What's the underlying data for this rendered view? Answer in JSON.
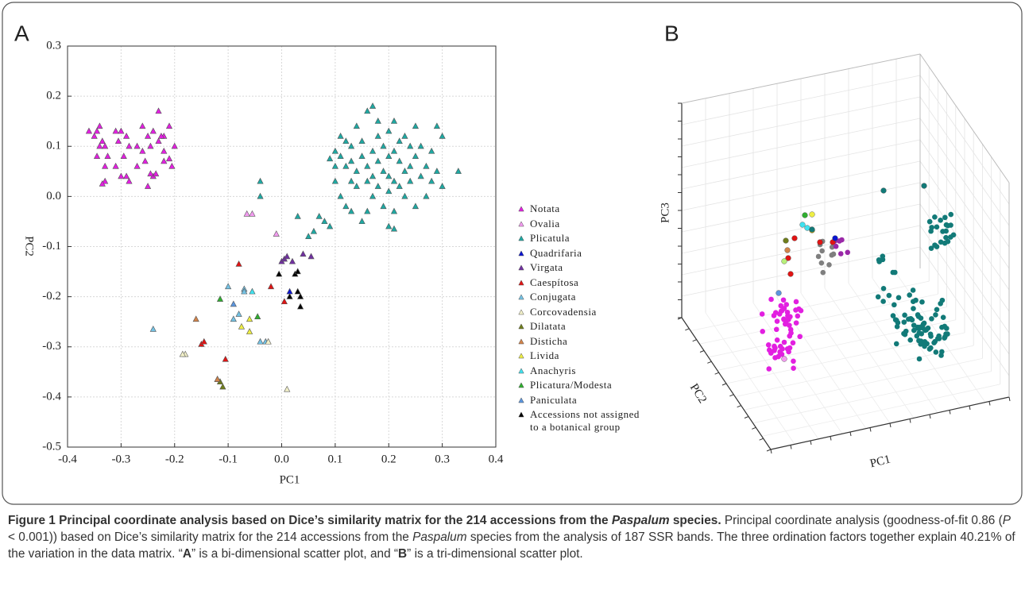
{
  "figure": {
    "panel_a_label": "A",
    "panel_b_label": "B"
  },
  "chart_data": [
    {
      "type": "scatter",
      "xlabel": "PC1",
      "ylabel": "PC2",
      "grid": true,
      "legend": "right",
      "xlim": [
        -0.4,
        0.4
      ],
      "ylim": [
        -0.5,
        0.3
      ],
      "xticks": [
        -0.4,
        -0.3,
        -0.2,
        -0.1,
        {
          "value": 0,
          "label": "0.0"
        },
        0.1,
        0.2,
        0.3,
        0.4
      ],
      "yticks": [
        0.3,
        0.2,
        0.1,
        {
          "value": 0,
          "label": "0.0"
        },
        -0.1,
        -0.2,
        -0.3,
        -0.4,
        -0.5
      ],
      "series": [
        {
          "name": "Notata",
          "color": "#e21fe0",
          "x": [
            -0.36,
            -0.345,
            -0.34,
            -0.35,
            -0.335,
            -0.34,
            -0.33,
            -0.345,
            -0.31,
            -0.325,
            -0.3,
            -0.305,
            -0.29,
            -0.285,
            -0.295,
            -0.31,
            -0.29,
            -0.27,
            -0.26,
            -0.25,
            -0.24,
            -0.245,
            -0.26,
            -0.255,
            -0.23,
            -0.22,
            -0.22,
            -0.21,
            -0.2,
            -0.22,
            -0.21,
            -0.205,
            -0.33,
            -0.33,
            -0.335,
            -0.285,
            -0.25,
            -0.24,
            -0.235,
            -0.23,
            -0.225,
            -0.27,
            -0.3,
            -0.245
          ],
          "values": [
            0.13,
            0.13,
            0.14,
            0.12,
            0.11,
            0.1,
            0.1,
            0.08,
            0.13,
            0.08,
            0.13,
            0.11,
            0.12,
            0.1,
            0.08,
            0.06,
            0.04,
            0.06,
            0.14,
            0.12,
            0.13,
            0.1,
            0.09,
            0.07,
            0.11,
            0.09,
            0.12,
            0.14,
            0.1,
            0.07,
            0.075,
            0.06,
            0.06,
            0.03,
            0.025,
            0.03,
            0.02,
            0.04,
            0.045,
            0.17,
            0.12,
            0.1,
            0.04,
            0.045
          ]
        },
        {
          "name": "Ovalia",
          "color": "#f39af0",
          "x": [
            -0.065,
            -0.055,
            -0.01
          ],
          "values": [
            -0.035,
            -0.035,
            -0.075
          ]
        },
        {
          "name": "Plicatula",
          "color": "#1fa8a2",
          "x": [
            0.09,
            0.1,
            0.1,
            0.11,
            0.11,
            0.12,
            0.12,
            0.13,
            0.13,
            0.13,
            0.14,
            0.14,
            0.14,
            0.15,
            0.15,
            0.16,
            0.16,
            0.16,
            0.17,
            0.17,
            0.17,
            0.17,
            0.18,
            0.18,
            0.18,
            0.18,
            0.19,
            0.19,
            0.19,
            0.2,
            0.2,
            0.2,
            0.2,
            0.2,
            0.21,
            0.21,
            0.21,
            0.21,
            0.21,
            0.22,
            0.22,
            0.22,
            0.23,
            0.23,
            0.23,
            0.24,
            0.24,
            0.24,
            0.25,
            0.25,
            0.25,
            0.26,
            0.26,
            0.27,
            0.27,
            0.28,
            0.28,
            0.29,
            0.29,
            0.3,
            0.3,
            0.33,
            0.11,
            0.12,
            0.1,
            0.15,
            0.16,
            0.13,
            -0.04,
            -0.04,
            0.03,
            0.05,
            0.06,
            0.07,
            0.08,
            0.09
          ],
          "values": [
            0.075,
            0.06,
            0.09,
            0.08,
            0.12,
            0.11,
            0.06,
            0.03,
            0.07,
            0.1,
            0.14,
            0.05,
            0.02,
            0.08,
            0.11,
            0.17,
            0.06,
            0.03,
            0.18,
            0.09,
            0.04,
            0.0,
            0.15,
            0.12,
            0.07,
            0.02,
            0.1,
            0.05,
            -0.02,
            0.13,
            0.08,
            0.04,
            0.01,
            -0.06,
            0.15,
            0.09,
            0.03,
            -0.03,
            -0.065,
            0.11,
            0.07,
            0.02,
            0.12,
            0.05,
            0.0,
            0.1,
            0.06,
            0.03,
            0.14,
            0.08,
            -0.02,
            0.04,
            0.1,
            0.0,
            0.06,
            0.03,
            0.09,
            0.14,
            0.05,
            0.12,
            0.02,
            0.05,
            0.0,
            -0.02,
            0.03,
            -0.05,
            -0.03,
            -0.03,
            0.03,
            0.0,
            -0.04,
            -0.08,
            -0.07,
            -0.04,
            -0.05,
            -0.06
          ]
        },
        {
          "name": "Quadrifaria",
          "color": "#0a14d0",
          "x": [
            0.015
          ],
          "values": [
            -0.19
          ]
        },
        {
          "name": "Virgata",
          "color": "#7030a0",
          "x": [
            0.0,
            0.005,
            0.01,
            0.02,
            0.04,
            0.055
          ],
          "values": [
            -0.13,
            -0.125,
            -0.12,
            -0.13,
            -0.115,
            -0.12
          ]
        },
        {
          "name": "Caespítosa",
          "color": "#e01414",
          "x": [
            -0.08,
            -0.02,
            0.005,
            -0.15,
            -0.145,
            -0.105
          ],
          "values": [
            -0.135,
            -0.18,
            -0.21,
            -0.295,
            -0.29,
            -0.325
          ]
        },
        {
          "name": "Conjugata",
          "color": "#74c2e4",
          "x": [
            -0.1,
            -0.07,
            -0.07,
            -0.08,
            -0.09,
            -0.24,
            -0.04,
            -0.03
          ],
          "values": [
            -0.18,
            -0.185,
            -0.19,
            -0.235,
            -0.245,
            -0.265,
            -0.29,
            -0.29
          ]
        },
        {
          "name": "Corcovadensia",
          "color": "#f2f0c8",
          "x": [
            -0.18,
            -0.185,
            -0.025,
            0.01
          ],
          "values": [
            -0.315,
            -0.315,
            -0.29,
            -0.385
          ]
        },
        {
          "name": "Dilatata",
          "color": "#6f7d1c",
          "x": [
            -0.11,
            -0.115,
            -0.12
          ],
          "values": [
            -0.38,
            -0.37,
            -0.365
          ]
        },
        {
          "name": "Disticha",
          "color": "#d2834a",
          "x": [
            -0.16,
            -0.12
          ],
          "values": [
            -0.245,
            -0.365
          ]
        },
        {
          "name": "Livida",
          "color": "#eeee44",
          "x": [
            -0.06,
            -0.06,
            -0.075
          ],
          "values": [
            -0.245,
            -0.27,
            -0.26
          ]
        },
        {
          "name": "Anachyris",
          "color": "#3fe2ef",
          "x": [
            -0.055
          ],
          "values": [
            -0.19
          ]
        },
        {
          "name": "Plicatura/Modesta",
          "color": "#2fae2f",
          "x": [
            -0.115,
            -0.045
          ],
          "values": [
            -0.205,
            -0.24
          ]
        },
        {
          "name": "Paniculata",
          "color": "#5b95de",
          "x": [
            -0.09
          ],
          "values": [
            -0.215
          ]
        },
        {
          "name": "Accessions not assigned to a botanical group",
          "color": "#000000",
          "x": [
            0.025,
            0.03,
            0.03,
            0.035,
            0.035,
            0.015,
            -0.005
          ],
          "values": [
            -0.155,
            -0.15,
            -0.19,
            -0.2,
            -0.22,
            -0.2,
            -0.155
          ]
        }
      ]
    },
    {
      "type": "scatter3d",
      "xlabel": "PC1",
      "ylabel": "PC2",
      "zlabel": "PC3"
    }
  ],
  "caption": {
    "segments": [
      "Figure 1 Principal coordinate analysis based on Dice’s similarity matrix for the 214 accessions from the ",
      "Paspalum",
      " species.",
      " Principal coordinate analysis (goodness-of-fit 0.86 (",
      "P",
      " < 0.001)) based on Dice’s similarity matrix for the 214 accessions from the ",
      "Paspalum",
      " species from the analysis of 187 SSR bands. The three ordination factors together explain 40.21% of the variation in the data matrix. “",
      "A",
      "” is a bi-dimensional scatter plot, and “",
      "B",
      "” is a tri-dimensional scatter plot."
    ]
  }
}
